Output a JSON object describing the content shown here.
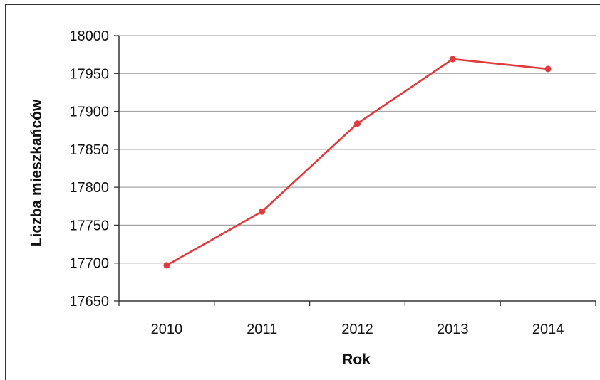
{
  "chart_data": {
    "type": "line",
    "title": "",
    "xlabel": "Rok",
    "ylabel": "Liczba mieszkańców",
    "categories": [
      "2010",
      "2011",
      "2012",
      "2013",
      "2014"
    ],
    "series": [
      {
        "values": [
          17697,
          17768,
          17884,
          17969,
          17956
        ]
      }
    ],
    "ylim": [
      17650,
      18000
    ],
    "yticks": [
      17650,
      17700,
      17750,
      17800,
      17850,
      17900,
      17950,
      18000
    ],
    "grid": true,
    "legend": "none",
    "line_color": "#e03a3e",
    "grid_color": "#a6a6a6"
  }
}
